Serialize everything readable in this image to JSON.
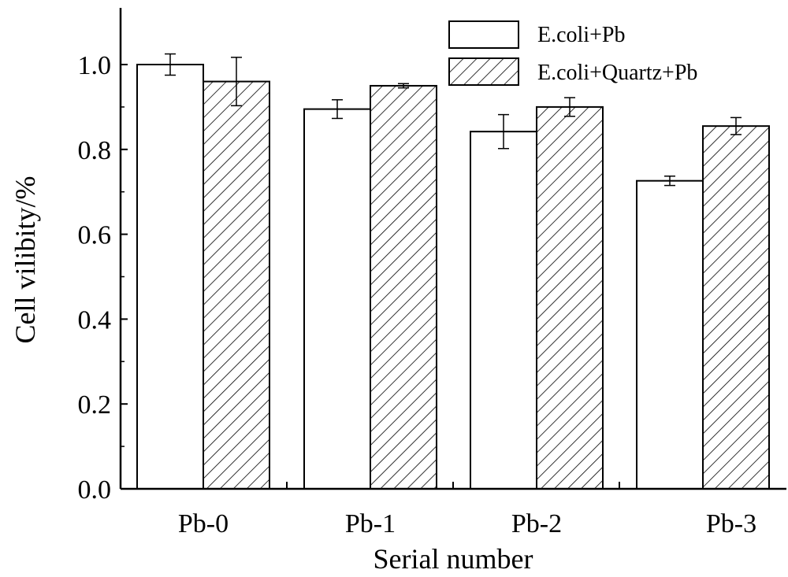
{
  "chart_data": {
    "type": "bar",
    "xlabel": "Serial number",
    "ylabel": "Cell vilibity/%",
    "categories": [
      "Pb-0",
      "Pb-1",
      "Pb-2",
      "Pb-3"
    ],
    "ylim": [
      0,
      1.0
    ],
    "yticks": [
      0.0,
      0.2,
      0.4,
      0.6,
      0.8,
      1.0
    ],
    "ytick_labels": [
      "0.0",
      "0.2",
      "0.4",
      "0.6",
      "0.8",
      "1.0"
    ],
    "grid": false,
    "legend": "top-right",
    "series": [
      {
        "name": "E.coli+Pb",
        "values": [
          1.0,
          0.895,
          0.842,
          0.726
        ],
        "errors": [
          0.025,
          0.022,
          0.04,
          0.011
        ],
        "fill": "white"
      },
      {
        "name": "E.coli+Quartz+Pb",
        "values": [
          0.96,
          0.95,
          0.9,
          0.855
        ],
        "errors": [
          0.057,
          0.005,
          0.022,
          0.02
        ],
        "fill": "hatched"
      }
    ]
  }
}
